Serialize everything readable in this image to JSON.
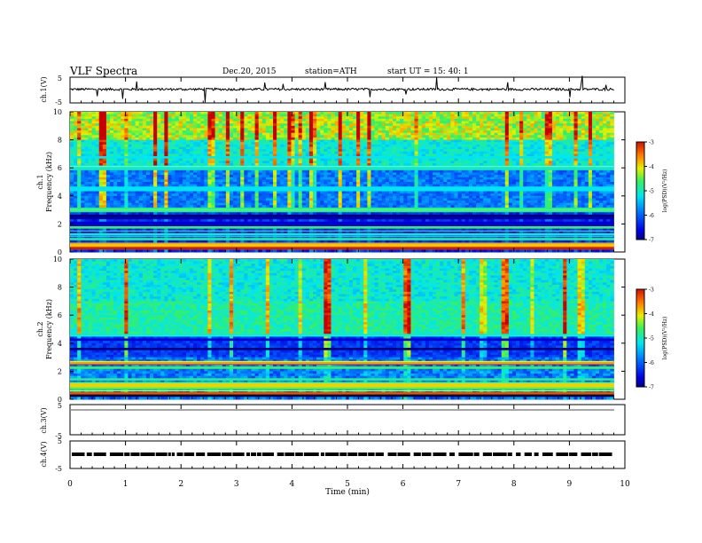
{
  "header": {
    "title": "VLF  Spectra",
    "date": "Dec.20, 2015",
    "station": "station=ATH",
    "start": "start  UT  =   15: 40: 1"
  },
  "chart_data": [
    {
      "type": "line",
      "name": "ch1-waveform",
      "ylabel": "ch.1(V)",
      "ylim": [
        -5,
        5
      ],
      "yticks": [
        "5",
        "-5"
      ],
      "baseline": 0.3,
      "xlim": [
        0,
        10
      ],
      "data_end_min": 9.8
    },
    {
      "type": "heatmap",
      "name": "ch1-spectrogram",
      "ylabel": "ch.1\nFrequency (kHz)",
      "ylabel_line1": "ch.1",
      "ylabel_line2": "Frequency (kHz)",
      "ylim": [
        0,
        10
      ],
      "yticks": [
        "0",
        "2",
        "4",
        "6",
        "8",
        "10"
      ],
      "xlim": [
        0,
        10
      ],
      "data_end_min": 9.8,
      "colorbar": {
        "label": "log(PSD)(V²/Hz)",
        "range": [
          -7,
          -3
        ],
        "ticks": [
          "-3",
          "-4",
          "-5",
          "-6",
          "-7"
        ]
      }
    },
    {
      "type": "heatmap",
      "name": "ch2-spectrogram",
      "ylabel_line1": "ch.2",
      "ylabel_line2": "Frequency (kHz)",
      "ylim": [
        0,
        10
      ],
      "yticks": [
        "0",
        "2",
        "4",
        "6",
        "8",
        "10"
      ],
      "xlim": [
        0,
        10
      ],
      "data_end_min": 9.8,
      "colorbar": {
        "label": "log(PSD)(V²/Hz)",
        "range": [
          -7,
          -3
        ],
        "ticks": [
          "-3",
          "-4",
          "-5",
          "-6",
          "-7"
        ]
      }
    },
    {
      "type": "line",
      "name": "ch3-waveform",
      "ylabel": "ch.3(V)",
      "ylim": [
        -5,
        5
      ],
      "yticks": [
        "5",
        "-5"
      ],
      "baseline": 4.2
    },
    {
      "type": "line",
      "name": "ch4-waveform",
      "ylabel": "ch.4(V)",
      "ylim": [
        -5,
        5
      ],
      "yticks": [
        "5",
        "-5"
      ],
      "baseline": 0
    }
  ],
  "xaxis": {
    "label": "Time  (min)",
    "ticks": [
      "0",
      "1",
      "2",
      "3",
      "4",
      "5",
      "6",
      "7",
      "8",
      "9",
      "10"
    ],
    "range": [
      0,
      10
    ]
  }
}
